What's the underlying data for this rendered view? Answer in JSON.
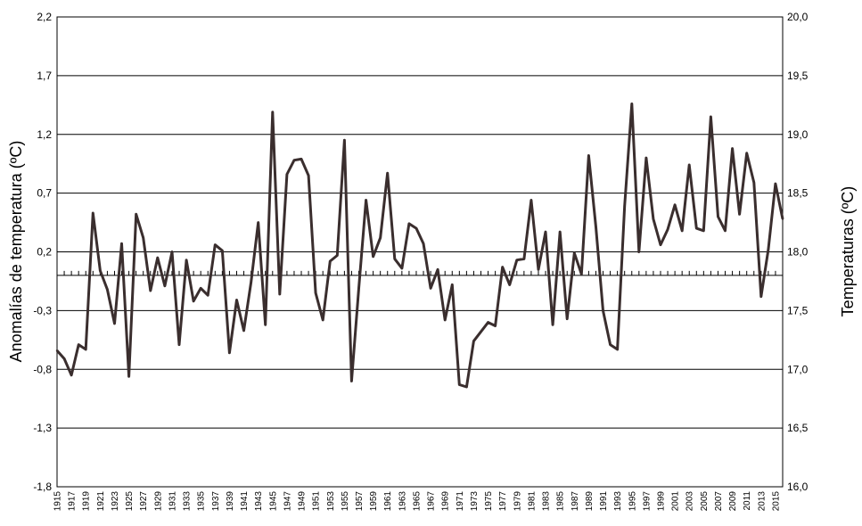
{
  "chart_data": {
    "type": "line",
    "title": "",
    "ylabel": "Anomalías de temperatura (ºC)",
    "y2label": "Temperaturas (ºC)",
    "ylim": [
      -1.8,
      2.2
    ],
    "y2lim": [
      16.0,
      20.0
    ],
    "yticks": [
      "2,2",
      "1,7",
      "1,2",
      "0,7",
      "0,2",
      "-0,3",
      "-0,8",
      "-1,3",
      "-1,8"
    ],
    "y2ticks": [
      "20,0",
      "19,5",
      "19,0",
      "18,5",
      "18,0",
      "17,5",
      "17,0",
      "16,5",
      "16,0"
    ],
    "grid": "horizontal",
    "legend": "none",
    "baseline": 0.0,
    "line_color": "#3a2e2e",
    "x": [
      1915,
      1916,
      1917,
      1918,
      1919,
      1920,
      1921,
      1922,
      1923,
      1924,
      1925,
      1926,
      1927,
      1928,
      1929,
      1930,
      1931,
      1932,
      1933,
      1934,
      1935,
      1936,
      1937,
      1938,
      1939,
      1940,
      1941,
      1942,
      1943,
      1944,
      1945,
      1946,
      1947,
      1948,
      1949,
      1950,
      1951,
      1952,
      1953,
      1954,
      1955,
      1956,
      1957,
      1958,
      1959,
      1960,
      1961,
      1962,
      1963,
      1964,
      1965,
      1966,
      1967,
      1968,
      1969,
      1970,
      1971,
      1972,
      1973,
      1974,
      1975,
      1976,
      1977,
      1978,
      1979,
      1980,
      1981,
      1982,
      1983,
      1984,
      1985,
      1986,
      1987,
      1988,
      1989,
      1990,
      1991,
      1992,
      1993,
      1994,
      1995,
      1996,
      1997,
      1998,
      1999,
      2000,
      2001,
      2002,
      2003,
      2004,
      2005,
      2006,
      2007,
      2008,
      2009,
      2010,
      2011,
      2012,
      2013,
      2014,
      2015,
      2016
    ],
    "xtick_labels": [
      "1915",
      "1917",
      "1919",
      "1921",
      "1923",
      "1925",
      "1927",
      "1929",
      "1931",
      "1933",
      "1935",
      "1937",
      "1939",
      "1941",
      "1943",
      "1945",
      "1947",
      "1949",
      "1951",
      "1953",
      "1955",
      "1957",
      "1959",
      "1961",
      "1963",
      "1965",
      "1967",
      "1969",
      "1971",
      "1973",
      "1975",
      "1977",
      "1979",
      "1981",
      "1983",
      "1985",
      "1987",
      "1989",
      "1991",
      "1993",
      "1995",
      "1997",
      "1999",
      "2001",
      "2003",
      "2005",
      "2007",
      "2009",
      "2011",
      "2013",
      "2015"
    ],
    "values": [
      -0.64,
      -0.71,
      -0.85,
      -0.59,
      -0.63,
      0.53,
      0.04,
      -0.12,
      -0.41,
      0.27,
      -0.86,
      0.52,
      0.32,
      -0.13,
      0.15,
      -0.09,
      0.2,
      -0.59,
      0.13,
      -0.22,
      -0.11,
      -0.17,
      0.26,
      0.21,
      -0.66,
      -0.21,
      -0.47,
      -0.06,
      0.45,
      -0.42,
      1.39,
      -0.16,
      0.86,
      0.98,
      0.99,
      0.85,
      -0.15,
      -0.38,
      0.12,
      0.17,
      1.15,
      -0.9,
      -0.11,
      0.64,
      0.16,
      0.32,
      0.87,
      0.14,
      0.06,
      0.44,
      0.4,
      0.27,
      -0.11,
      0.05,
      -0.38,
      -0.08,
      -0.93,
      -0.95,
      -0.56,
      -0.48,
      -0.4,
      -0.43,
      0.07,
      -0.08,
      0.13,
      0.14,
      0.64,
      0.05,
      0.37,
      -0.42,
      0.37,
      -0.37,
      0.19,
      0.01,
      1.02,
      0.41,
      -0.3,
      -0.59,
      -0.63,
      0.59,
      1.46,
      0.2,
      1.0,
      0.48,
      0.26,
      0.39,
      0.6,
      0.38,
      0.94,
      0.4,
      0.38,
      1.35,
      0.5,
      0.38,
      1.08,
      0.52,
      1.04,
      0.79,
      -0.18,
      0.22,
      0.78,
      0.48
    ]
  }
}
